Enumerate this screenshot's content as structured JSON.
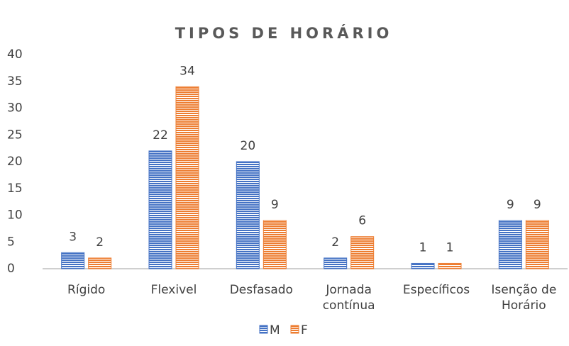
{
  "chart_data": {
    "type": "bar",
    "title": "TIPOS DE HORÁRIO",
    "categories": [
      "Rígido",
      "Flexivel",
      "Desfasado",
      "Jornada contínua",
      "Específicos",
      "Isenção de Horário"
    ],
    "series": [
      {
        "name": "M",
        "color": "#4472c4",
        "values": [
          3,
          22,
          20,
          2,
          1,
          9
        ]
      },
      {
        "name": "F",
        "color": "#ed7d31",
        "values": [
          2,
          34,
          9,
          6,
          1,
          9
        ]
      }
    ],
    "ylim": [
      0,
      40
    ],
    "yticks": [
      0,
      5,
      10,
      15,
      20,
      25,
      30,
      35,
      40
    ],
    "grid": false,
    "legend": "bottom"
  }
}
